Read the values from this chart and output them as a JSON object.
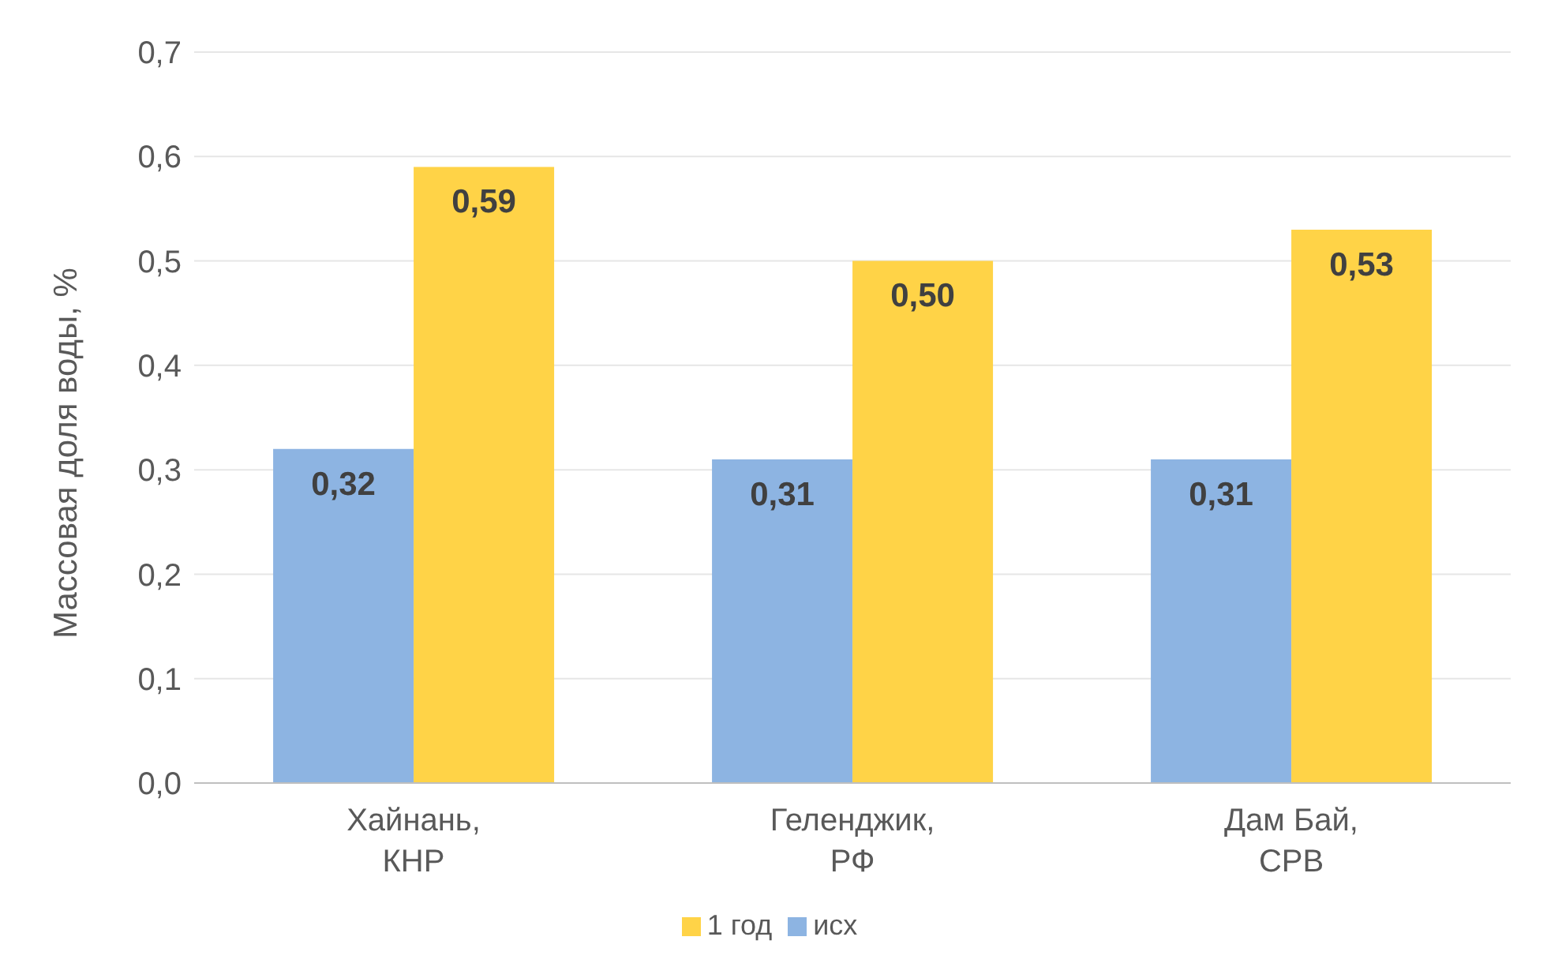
{
  "chart_data": {
    "type": "bar",
    "ylabel": "Массовая доля воды, %",
    "categories": [
      "Хайнань, КНР",
      "Геленджик, РФ",
      "Дам Бай, СРВ"
    ],
    "series": [
      {
        "name": "исх",
        "color": "#8db4e2",
        "values": [
          0.32,
          0.31,
          0.31
        ],
        "value_labels": [
          "0,32",
          "0,31",
          "0,31"
        ]
      },
      {
        "name": "1 год",
        "color": "#ffd347",
        "values": [
          0.59,
          0.5,
          0.53
        ],
        "value_labels": [
          "0,59",
          "0,50",
          "0,53"
        ]
      }
    ],
    "ylim": [
      0,
      0.7
    ],
    "yticks": [
      {
        "value": 0,
        "label": "0,0"
      },
      {
        "value": 0.1,
        "label": "0,1"
      },
      {
        "value": 0.2,
        "label": "0,2"
      },
      {
        "value": 0.3,
        "label": "0,3"
      },
      {
        "value": 0.4,
        "label": "0,4"
      },
      {
        "value": 0.5,
        "label": "0,5"
      },
      {
        "value": 0.6,
        "label": "0,6"
      },
      {
        "value": 0.7,
        "label": "0,7"
      }
    ],
    "grid": "y",
    "legend": "bottom"
  }
}
